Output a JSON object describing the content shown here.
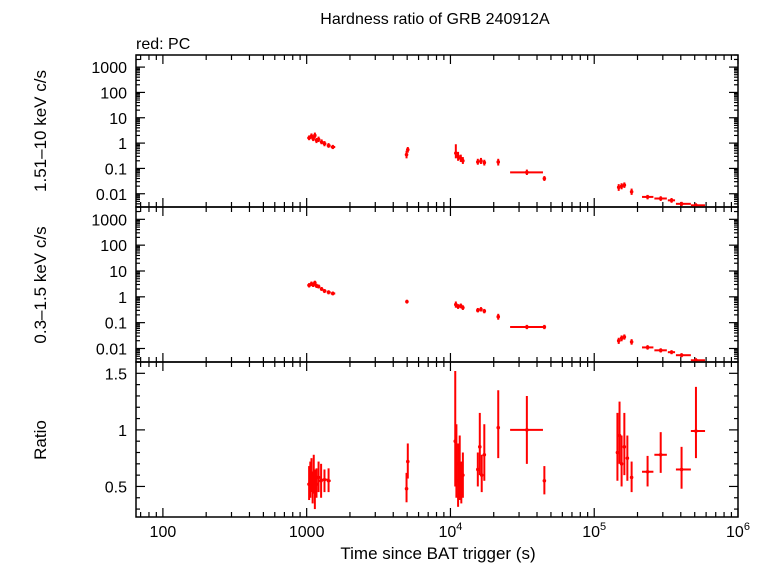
{
  "chart_data": {
    "type": "scatter",
    "title": "Hardness ratio of GRB 240912A",
    "subtitle": "red: PC",
    "xlabel": "Time since BAT trigger (s)",
    "xscale": "log",
    "xlim": [
      65,
      1000000
    ],
    "x_ticks": [
      {
        "value": 100,
        "label": "100"
      },
      {
        "value": 1000,
        "label": "1000"
      },
      {
        "value": 10000,
        "base": "10",
        "exp": "4"
      },
      {
        "value": 100000,
        "base": "10",
        "exp": "5"
      },
      {
        "value": 1000000,
        "base": "10",
        "exp": "6"
      }
    ],
    "series_color": "#ff0000",
    "panels": [
      {
        "name": "hard",
        "ylabel": "1.51–10 keV c/s",
        "yscale": "log",
        "ylim": [
          0.003,
          3000
        ],
        "y_ticks": [
          {
            "value": 1000,
            "label": "1000"
          },
          {
            "value": 100,
            "label": "100"
          },
          {
            "value": 10,
            "label": "10"
          },
          {
            "value": 1,
            "label": "1"
          },
          {
            "value": 0.1,
            "label": "0.1"
          },
          {
            "value": 0.01,
            "label": "0.01"
          }
        ],
        "points": [
          [
            1040,
            1.6,
            1010,
            1070,
            1.3,
            2.0
          ],
          [
            1080,
            1.9,
            1060,
            1100,
            1.5,
            2.4
          ],
          [
            1110,
            1.5,
            1090,
            1130,
            1.2,
            1.9
          ],
          [
            1140,
            2.0,
            1120,
            1160,
            1.6,
            2.6
          ],
          [
            1170,
            1.3,
            1150,
            1190,
            1.0,
            1.6
          ],
          [
            1210,
            1.4,
            1180,
            1240,
            1.1,
            1.8
          ],
          [
            1270,
            1.1,
            1240,
            1300,
            0.9,
            1.4
          ],
          [
            1330,
            0.95,
            1300,
            1370,
            0.75,
            1.2
          ],
          [
            1420,
            0.8,
            1380,
            1470,
            0.65,
            1.0
          ],
          [
            1520,
            0.7,
            1470,
            1580,
            0.58,
            0.85
          ],
          [
            4950,
            0.35,
            4850,
            5050,
            0.25,
            0.5
          ],
          [
            5050,
            0.55,
            4980,
            5120,
            0.42,
            0.7
          ],
          [
            10900,
            0.4,
            10800,
            11000,
            0.25,
            0.9
          ],
          [
            11300,
            0.3,
            11150,
            11450,
            0.2,
            0.45
          ],
          [
            11800,
            0.25,
            11650,
            11950,
            0.18,
            0.35
          ],
          [
            12200,
            0.2,
            12050,
            12350,
            0.15,
            0.28
          ],
          [
            15500,
            0.18,
            15300,
            15700,
            0.14,
            0.24
          ],
          [
            16300,
            0.2,
            16100,
            16500,
            0.15,
            0.26
          ],
          [
            17200,
            0.17,
            17000,
            17400,
            0.13,
            0.22
          ],
          [
            21500,
            0.18,
            21000,
            22000,
            0.13,
            0.24
          ],
          [
            34000,
            0.07,
            26000,
            44000,
            0.055,
            0.09
          ],
          [
            45000,
            0.04,
            44500,
            45500,
            0.032,
            0.05
          ],
          [
            148000,
            0.018,
            145000,
            151000,
            0.013,
            0.024
          ],
          [
            155000,
            0.02,
            152000,
            158000,
            0.015,
            0.026
          ],
          [
            162000,
            0.022,
            159000,
            165000,
            0.017,
            0.028
          ],
          [
            182000,
            0.012,
            178000,
            186000,
            0.009,
            0.016
          ],
          [
            235000,
            0.0075,
            215000,
            258000,
            0.006,
            0.009
          ],
          [
            290000,
            0.0065,
            262000,
            320000,
            0.0052,
            0.008
          ],
          [
            345000,
            0.0055,
            325000,
            365000,
            0.0044,
            0.0068
          ],
          [
            405000,
            0.004,
            370000,
            470000,
            0.0033,
            0.0048
          ],
          [
            510000,
            0.0035,
            470000,
            590000,
            0.003,
            0.0042
          ]
        ]
      },
      {
        "name": "soft",
        "ylabel": "0.3–1.5 keV c/s",
        "yscale": "log",
        "ylim": [
          0.003,
          3000
        ],
        "y_ticks": [
          {
            "value": 1000,
            "label": "1000"
          },
          {
            "value": 100,
            "label": "100"
          },
          {
            "value": 10,
            "label": "10"
          },
          {
            "value": 1,
            "label": "1"
          },
          {
            "value": 0.1,
            "label": "0.1"
          },
          {
            "value": 0.01,
            "label": "0.01"
          }
        ],
        "points": [
          [
            1040,
            2.8,
            1010,
            1070,
            2.3,
            3.4
          ],
          [
            1080,
            3.2,
            1060,
            1100,
            2.6,
            3.9
          ],
          [
            1110,
            2.9,
            1090,
            1130,
            2.4,
            3.5
          ],
          [
            1140,
            3.5,
            1120,
            1160,
            2.9,
            4.2
          ],
          [
            1170,
            2.7,
            1150,
            1190,
            2.2,
            3.2
          ],
          [
            1210,
            2.5,
            1180,
            1240,
            2.1,
            3.0
          ],
          [
            1270,
            2.0,
            1240,
            1300,
            1.7,
            2.4
          ],
          [
            1330,
            1.7,
            1300,
            1370,
            1.4,
            2.0
          ],
          [
            1420,
            1.5,
            1380,
            1470,
            1.25,
            1.8
          ],
          [
            1520,
            1.35,
            1470,
            1580,
            1.15,
            1.6
          ],
          [
            4980,
            0.65,
            4880,
            5080,
            0.55,
            0.77
          ],
          [
            10900,
            0.5,
            10800,
            11000,
            0.38,
            0.66
          ],
          [
            11300,
            0.42,
            11150,
            11450,
            0.34,
            0.52
          ],
          [
            11800,
            0.45,
            11650,
            11950,
            0.36,
            0.55
          ],
          [
            12200,
            0.38,
            12050,
            12350,
            0.31,
            0.47
          ],
          [
            15500,
            0.3,
            15300,
            15700,
            0.25,
            0.37
          ],
          [
            16300,
            0.33,
            16100,
            16500,
            0.27,
            0.4
          ],
          [
            17200,
            0.28,
            17000,
            17400,
            0.23,
            0.34
          ],
          [
            21500,
            0.17,
            21000,
            22000,
            0.13,
            0.22
          ],
          [
            34000,
            0.068,
            26000,
            44000,
            0.056,
            0.082
          ],
          [
            45000,
            0.068,
            44500,
            45500,
            0.056,
            0.082
          ],
          [
            148000,
            0.02,
            145000,
            151000,
            0.015,
            0.026
          ],
          [
            155000,
            0.025,
            152000,
            158000,
            0.019,
            0.032
          ],
          [
            162000,
            0.028,
            159000,
            165000,
            0.022,
            0.035
          ],
          [
            182000,
            0.018,
            178000,
            186000,
            0.014,
            0.023
          ],
          [
            235000,
            0.011,
            215000,
            258000,
            0.009,
            0.0135
          ],
          [
            290000,
            0.0085,
            262000,
            320000,
            0.007,
            0.0102
          ],
          [
            345000,
            0.0072,
            325000,
            365000,
            0.006,
            0.0086
          ],
          [
            405000,
            0.0055,
            370000,
            470000,
            0.0046,
            0.0066
          ],
          [
            510000,
            0.0035,
            470000,
            590000,
            0.0029,
            0.0042
          ]
        ]
      },
      {
        "name": "ratio",
        "ylabel": "Ratio",
        "yscale": "linear",
        "ylim": [
          0.23,
          1.6
        ],
        "y_ticks": [
          {
            "value": 1.5,
            "label": "1.5"
          },
          {
            "value": 1,
            "label": "1"
          },
          {
            "value": 0.5,
            "label": "0.5"
          }
        ],
        "points": [
          [
            1040,
            0.52,
            1010,
            1070,
            0.38,
            0.68
          ],
          [
            1060,
            0.55,
            1045,
            1075,
            0.4,
            0.72
          ],
          [
            1080,
            0.6,
            1065,
            1095,
            0.45,
            0.75
          ],
          [
            1100,
            0.48,
            1085,
            1115,
            0.35,
            0.62
          ],
          [
            1120,
            0.62,
            1105,
            1135,
            0.45,
            0.78
          ],
          [
            1140,
            0.45,
            1125,
            1155,
            0.3,
            0.65
          ],
          [
            1170,
            0.52,
            1150,
            1190,
            0.4,
            0.66
          ],
          [
            1210,
            0.58,
            1180,
            1240,
            0.45,
            0.72
          ],
          [
            1260,
            0.55,
            1240,
            1280,
            0.4,
            0.7
          ],
          [
            1330,
            0.56,
            1240,
            1420,
            0.45,
            0.65
          ],
          [
            1420,
            0.55,
            1380,
            1470,
            0.45,
            0.66
          ],
          [
            4950,
            0.48,
            4850,
            5050,
            0.36,
            0.62
          ],
          [
            5050,
            0.72,
            4980,
            5120,
            0.57,
            0.88
          ],
          [
            10800,
            0.9,
            10700,
            10900,
            0.5,
            1.52
          ],
          [
            11000,
            0.7,
            10900,
            11100,
            0.4,
            1.05
          ],
          [
            11300,
            0.55,
            11150,
            11450,
            0.32,
            0.88
          ],
          [
            11600,
            0.65,
            11450,
            11750,
            0.38,
            0.95
          ],
          [
            11900,
            0.52,
            11750,
            12050,
            0.35,
            0.72
          ],
          [
            12200,
            0.6,
            12050,
            12350,
            0.4,
            0.8
          ],
          [
            15500,
            0.65,
            15300,
            15700,
            0.5,
            0.8
          ],
          [
            16000,
            0.85,
            15850,
            16150,
            0.6,
            1.15
          ],
          [
            16500,
            0.6,
            16350,
            16650,
            0.45,
            0.78
          ],
          [
            17200,
            0.78,
            17000,
            17400,
            0.55,
            1.05
          ],
          [
            21500,
            1.02,
            21000,
            22000,
            0.75,
            1.35
          ],
          [
            34000,
            1.0,
            26000,
            44000,
            0.7,
            1.3
          ],
          [
            45000,
            0.55,
            44500,
            45500,
            0.43,
            0.68
          ],
          [
            145000,
            0.8,
            142000,
            148000,
            0.55,
            1.15
          ],
          [
            150000,
            0.95,
            148000,
            152000,
            0.7,
            1.25
          ],
          [
            155000,
            0.7,
            153000,
            157000,
            0.5,
            0.95
          ],
          [
            162000,
            0.85,
            159000,
            165000,
            0.6,
            1.15
          ],
          [
            170000,
            0.75,
            167000,
            173000,
            0.55,
            0.95
          ],
          [
            182000,
            0.58,
            178000,
            186000,
            0.45,
            0.72
          ],
          [
            235000,
            0.63,
            215000,
            258000,
            0.5,
            0.77
          ],
          [
            290000,
            0.78,
            262000,
            320000,
            0.62,
            0.98
          ],
          [
            405000,
            0.65,
            370000,
            470000,
            0.48,
            0.85
          ],
          [
            510000,
            0.99,
            470000,
            590000,
            0.75,
            1.38
          ]
        ]
      }
    ]
  }
}
